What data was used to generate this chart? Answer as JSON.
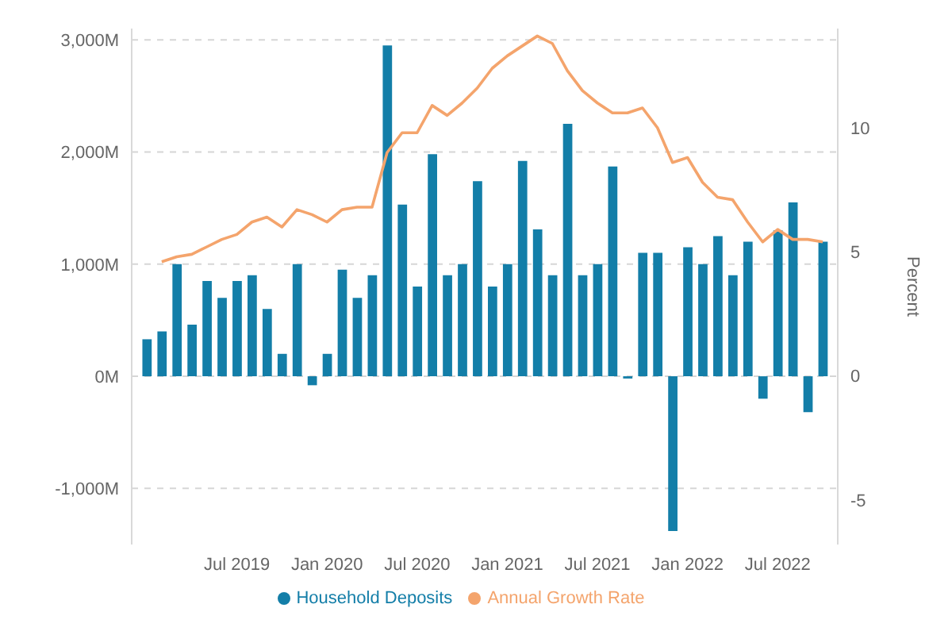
{
  "chart_data": {
    "type": "bar",
    "y2label": "Percent",
    "x": [
      "2019-01",
      "2019-02",
      "2019-03",
      "2019-04",
      "2019-05",
      "2019-06",
      "2019-07",
      "2019-08",
      "2019-09",
      "2019-10",
      "2019-11",
      "2019-12",
      "2020-01",
      "2020-02",
      "2020-03",
      "2020-04",
      "2020-05",
      "2020-06",
      "2020-07",
      "2020-08",
      "2020-09",
      "2020-10",
      "2020-11",
      "2020-12",
      "2021-01",
      "2021-02",
      "2021-03",
      "2021-04",
      "2021-05",
      "2021-06",
      "2021-07",
      "2021-08",
      "2021-09",
      "2021-10",
      "2021-11",
      "2021-12",
      "2022-01",
      "2022-02",
      "2022-03",
      "2022-04",
      "2022-05",
      "2022-06",
      "2022-07",
      "2022-08",
      "2022-09",
      "2022-10"
    ],
    "series": [
      {
        "name": "Household Deposits",
        "color": "#137ea8",
        "values": [
          330,
          400,
          1000,
          460,
          850,
          700,
          850,
          900,
          600,
          200,
          1000,
          -80,
          200,
          950,
          700,
          900,
          2950,
          1530,
          800,
          1980,
          900,
          1000,
          1740,
          800,
          1000,
          1920,
          1310,
          900,
          2250,
          900,
          1000,
          1870,
          -20,
          1100,
          1100,
          -1380,
          1150,
          1000,
          1250,
          900,
          1200,
          -200,
          1300,
          1550,
          -320,
          1200
        ]
      },
      {
        "name": "Annual Growth Rate",
        "type": "line",
        "axis": "y2",
        "color": "#f4a46c",
        "values": [
          null,
          4.6,
          4.8,
          4.9,
          5.2,
          5.5,
          5.7,
          6.2,
          6.4,
          6.0,
          6.7,
          6.5,
          6.2,
          6.7,
          6.8,
          6.8,
          9.0,
          9.8,
          9.8,
          10.9,
          10.5,
          11.0,
          11.6,
          12.4,
          12.9,
          13.3,
          13.7,
          13.4,
          12.3,
          11.5,
          11.0,
          10.6,
          10.6,
          10.8,
          10.0,
          8.6,
          8.8,
          7.8,
          7.2,
          7.1,
          6.2,
          5.4,
          5.9,
          5.5,
          5.5,
          5.4
        ]
      }
    ],
    "xlim": [
      "2018-12",
      "2022-11"
    ],
    "xticks": [
      {
        "value": "2019-07",
        "label": "Jul 2019"
      },
      {
        "value": "2020-01",
        "label": "Jan 2020"
      },
      {
        "value": "2020-07",
        "label": "Jul 2020"
      },
      {
        "value": "2021-01",
        "label": "Jan 2021"
      },
      {
        "value": "2021-07",
        "label": "Jul 2021"
      },
      {
        "value": "2022-01",
        "label": "Jan 2022"
      },
      {
        "value": "2022-07",
        "label": "Jul 2022"
      }
    ],
    "ylim": [
      -1500,
      3100
    ],
    "yticks": [
      {
        "value": -1000,
        "label": "-1,000M"
      },
      {
        "value": 0,
        "label": "0M"
      },
      {
        "value": 1000,
        "label": "1,000M"
      },
      {
        "value": 2000,
        "label": "2,000M"
      },
      {
        "value": 3000,
        "label": "3,000M"
      }
    ],
    "y2lim": [
      -6.8,
      14
    ],
    "y2ticks": [
      -5,
      0,
      5,
      10
    ],
    "grid": "y",
    "legend": "bottom",
    "marker": "none",
    "line_style": "solid"
  }
}
